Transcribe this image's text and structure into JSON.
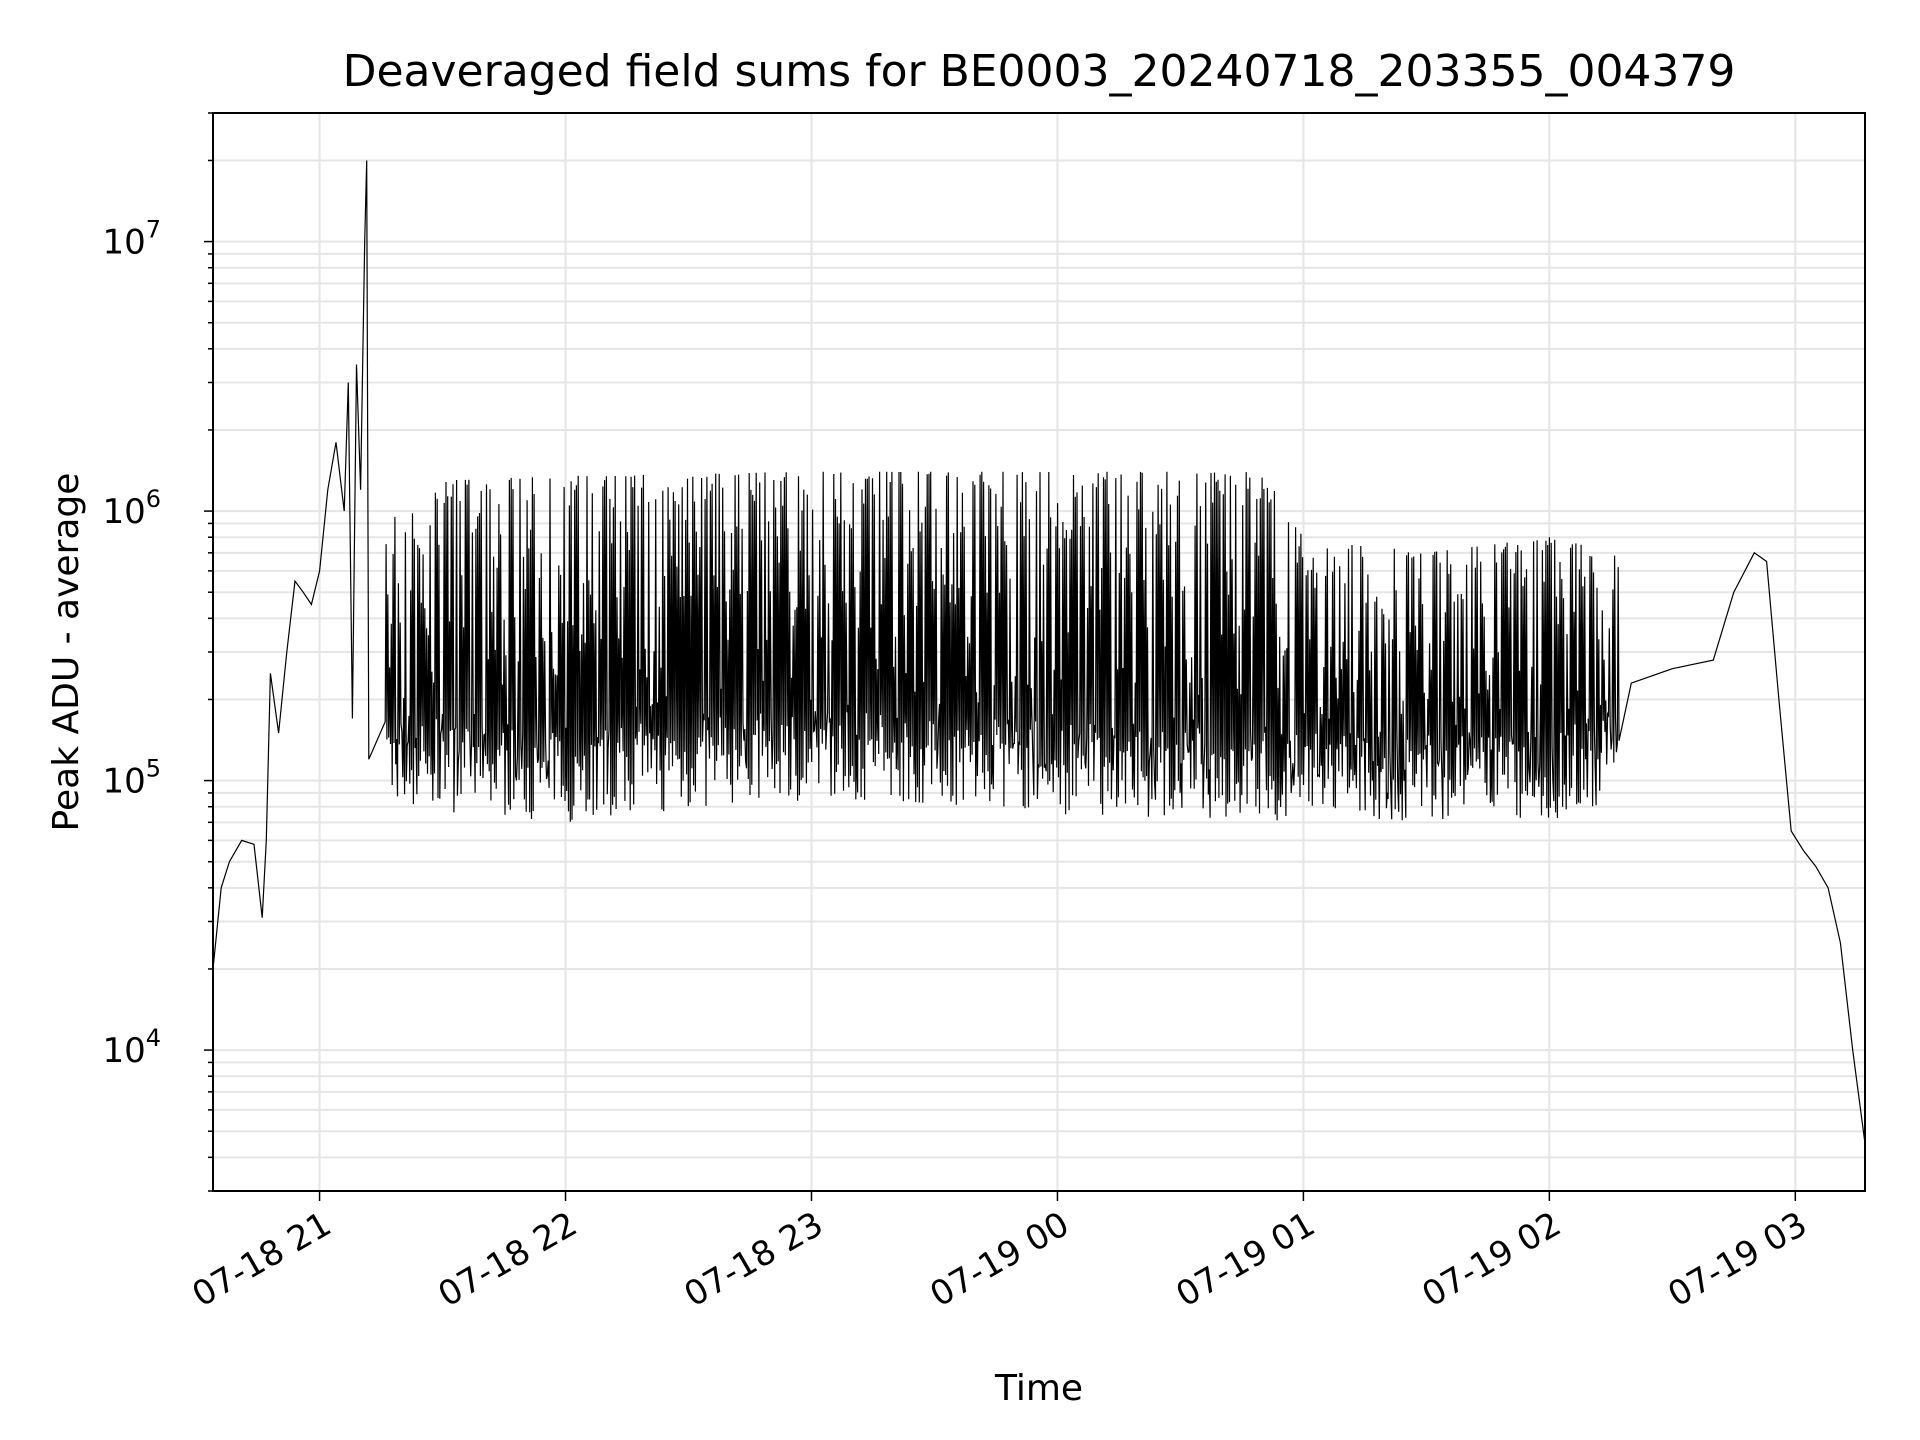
{
  "chart_data": {
    "type": "line",
    "title": "Deaveraged field sums for BE0003_20240718_203355_004379",
    "xlabel": "Time",
    "ylabel": "Peak ADU - average",
    "yscale": "log",
    "ylim": [
      3000,
      30000000
    ],
    "xlim": [
      "2024-07-18 20:34",
      "2024-07-19 03:17"
    ],
    "x_ticks": [
      "07-18 21",
      "07-18 22",
      "07-18 23",
      "07-19 00",
      "07-19 01",
      "07-19 02",
      "07-19 03"
    ],
    "y_ticks": [
      {
        "base": "10",
        "exp": "4",
        "value": 10000
      },
      {
        "base": "10",
        "exp": "5",
        "value": 100000
      },
      {
        "base": "10",
        "exp": "6",
        "value": 1000000
      },
      {
        "base": "10",
        "exp": "7",
        "value": 10000000
      }
    ],
    "grid": true,
    "line_color": "#000000",
    "grid_color": "#e5e5e5",
    "series": [
      {
        "points": [
          [
            "2024-07-18 20:34",
            20000
          ],
          [
            "2024-07-18 20:36",
            40000
          ],
          [
            "2024-07-18 20:38",
            50000
          ],
          [
            "2024-07-18 20:41",
            60000
          ],
          [
            "2024-07-18 20:44",
            58000
          ],
          [
            "2024-07-18 20:46",
            31000
          ],
          [
            "2024-07-18 20:47",
            60000
          ],
          [
            "2024-07-18 20:48",
            250000
          ],
          [
            "2024-07-18 20:50",
            150000
          ],
          [
            "2024-07-18 20:52",
            300000
          ],
          [
            "2024-07-18 20:54",
            550000
          ],
          [
            "2024-07-18 20:56",
            500000
          ],
          [
            "2024-07-18 20:58",
            450000
          ],
          [
            "2024-07-18 21:00",
            600000
          ],
          [
            "2024-07-18 21:02",
            1200000
          ],
          [
            "2024-07-18 21:04",
            1800000
          ],
          [
            "2024-07-18 21:06",
            1000000
          ],
          [
            "2024-07-18 21:07",
            3000000
          ],
          [
            "2024-07-18 21:08",
            170000
          ],
          [
            "2024-07-18 21:09",
            3500000
          ],
          [
            "2024-07-18 21:10",
            1200000
          ],
          [
            "2024-07-18 21:11",
            10000000
          ],
          [
            "2024-07-18 21:11:30",
            20000000
          ],
          [
            "2024-07-18 21:12",
            120000
          ],
          [
            "2024-07-18 21:20",
            130000
          ],
          [
            "2024-07-18 21:30",
            140000
          ],
          [
            "2024-07-18 21:40",
            130000
          ],
          [
            "2024-07-18 22:00",
            120000
          ],
          [
            "2024-07-18 22:30",
            130000
          ],
          [
            "2024-07-18 23:00",
            125000
          ],
          [
            "2024-07-18 23:30",
            130000
          ],
          [
            "2024-07-19 00:00",
            130000
          ],
          [
            "2024-07-19 00:30",
            140000
          ],
          [
            "2024-07-19 01:00",
            125000
          ],
          [
            "2024-07-19 01:30",
            100000
          ],
          [
            "2024-07-19 02:00",
            95000
          ],
          [
            "2024-07-19 02:10",
            130000
          ],
          [
            "2024-07-19 02:20",
            230000
          ],
          [
            "2024-07-19 02:30",
            260000
          ],
          [
            "2024-07-19 02:40",
            280000
          ],
          [
            "2024-07-19 02:45",
            500000
          ],
          [
            "2024-07-19 02:50",
            700000
          ],
          [
            "2024-07-19 02:53",
            650000
          ],
          [
            "2024-07-19 02:56",
            200000
          ],
          [
            "2024-07-19 02:59",
            65000
          ],
          [
            "2024-07-19 03:02",
            55000
          ],
          [
            "2024-07-19 03:05",
            48000
          ],
          [
            "2024-07-19 03:08",
            40000
          ],
          [
            "2024-07-19 03:11",
            25000
          ],
          [
            "2024-07-19 03:14",
            10000
          ],
          [
            "2024-07-19 03:17",
            4500
          ]
        ],
        "oscillation": {
          "start": "2024-07-18 21:16",
          "end": "2024-07-19 02:17",
          "upper_envelope": [
            [
              "2024-07-18 21:16",
              900000
            ],
            [
              "2024-07-18 21:30",
              1300000
            ],
            [
              "2024-07-18 22:00",
              1350000
            ],
            [
              "2024-07-18 23:00",
              1400000
            ],
            [
              "2024-07-19 00:00",
              1400000
            ],
            [
              "2024-07-19 00:50",
              1400000
            ],
            [
              "2024-07-19 01:00",
              800000
            ],
            [
              "2024-07-19 01:30",
              700000
            ],
            [
              "2024-07-19 02:00",
              800000
            ],
            [
              "2024-07-19 02:17",
              700000
            ]
          ],
          "lower_envelope": [
            [
              "2024-07-18 21:16",
              80000
            ],
            [
              "2024-07-18 22:00",
              70000
            ],
            [
              "2024-07-18 23:00",
              85000
            ],
            [
              "2024-07-19 00:00",
              75000
            ],
            [
              "2024-07-19 01:00",
              70000
            ],
            [
              "2024-07-19 02:00",
              70000
            ],
            [
              "2024-07-19 02:17",
              85000
            ]
          ]
        }
      }
    ]
  }
}
